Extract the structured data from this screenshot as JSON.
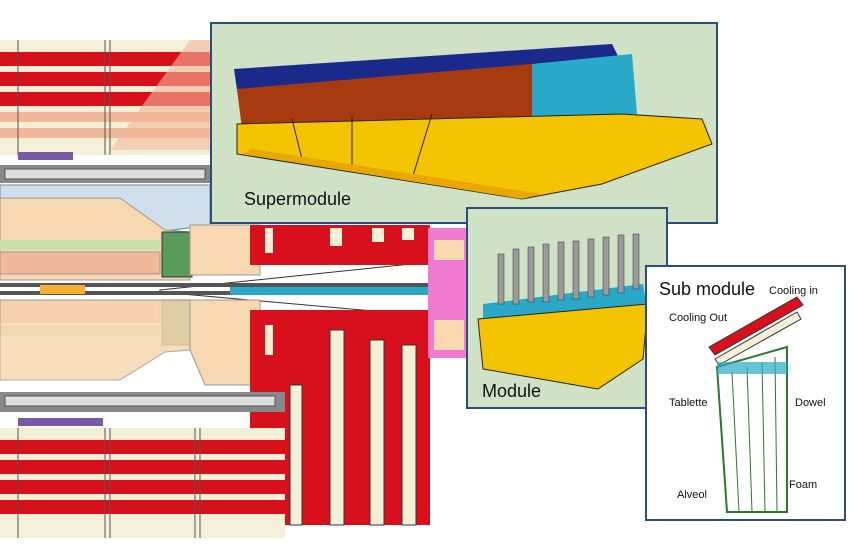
{
  "panels": {
    "supermodule": {
      "caption": "Supermodule"
    },
    "module": {
      "caption": "Module"
    },
    "submodule": {
      "caption": "Sub module",
      "labels": {
        "cooling_in": "Cooling in",
        "cooling_out": "Cooling Out",
        "tablette": "Tablette",
        "dowel": "Dowel",
        "alveol": "Alveol",
        "foam": "Foam"
      }
    }
  },
  "colors": {
    "panel_bg": "#cfe2c5",
    "panel_border": "#2a4d7a",
    "red": "#d8101c",
    "cream": "#f4f0d8",
    "salmon": "#f2b89a",
    "peach": "#f7d8b0",
    "lightblue": "#cfe0ec",
    "yellow": "#f5c400",
    "navy": "#1a2a8a",
    "brown": "#a83a10",
    "cyan": "#2aa8c8",
    "pink": "#f07ad0"
  }
}
